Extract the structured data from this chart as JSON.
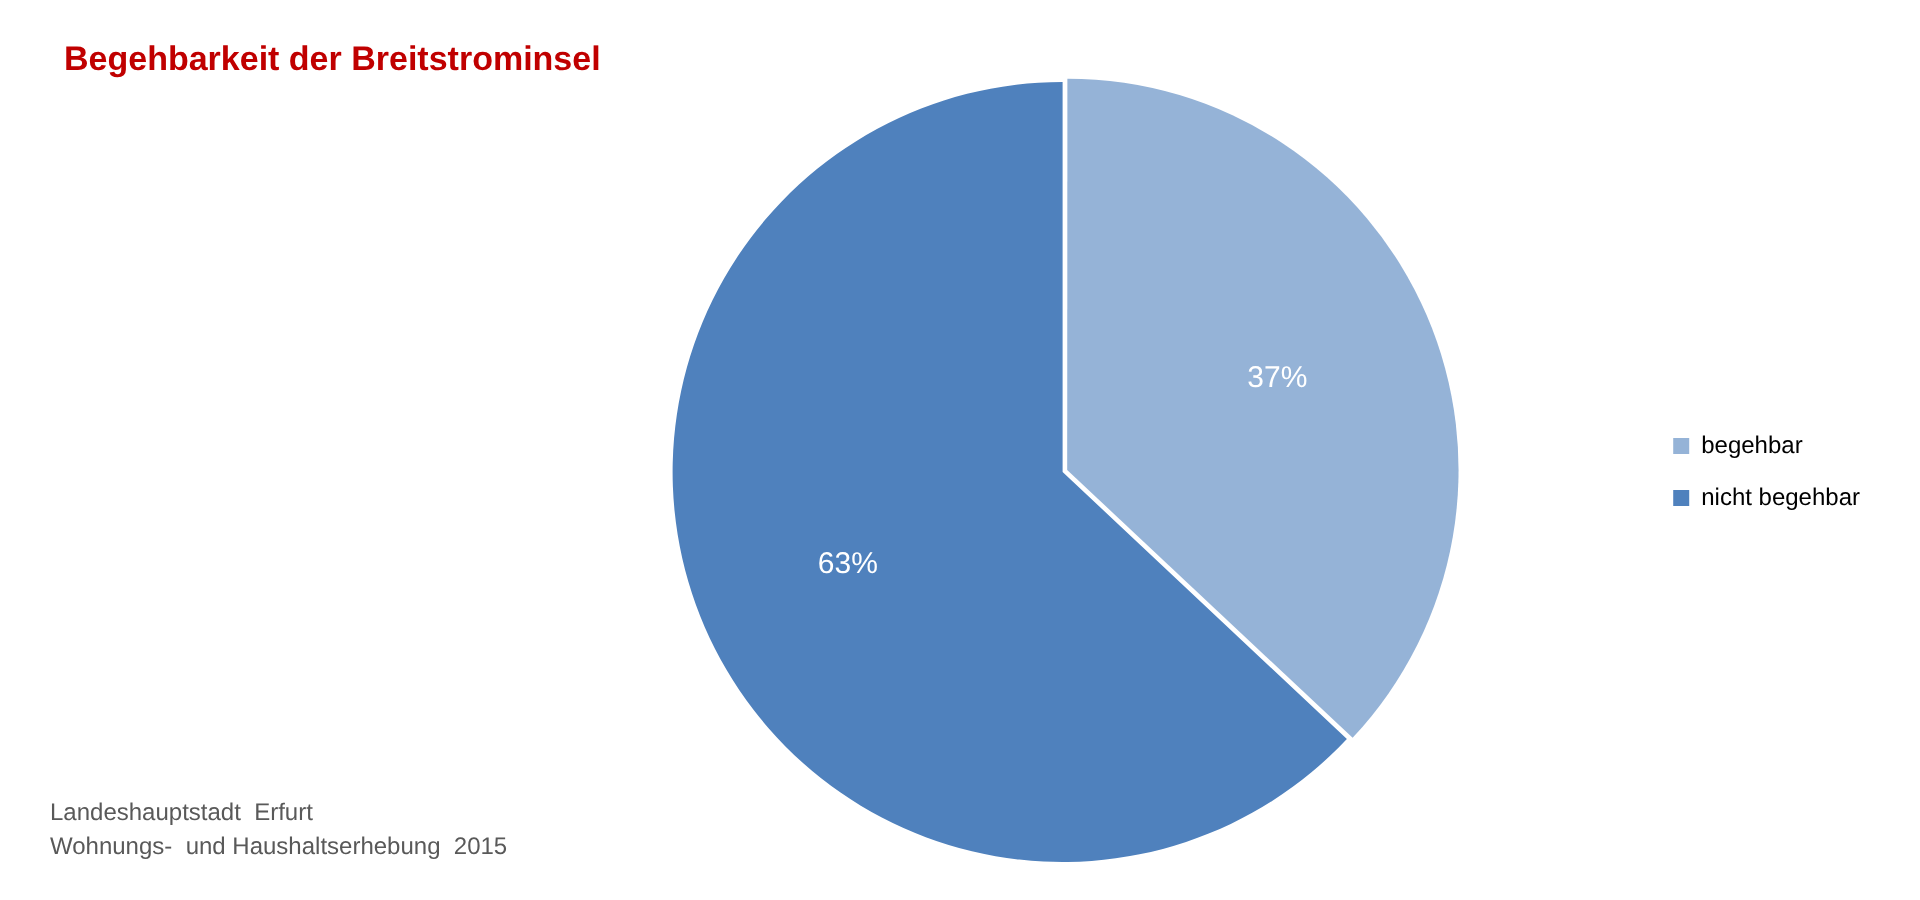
{
  "chart_data": {
    "type": "pie",
    "title": "Begehbarkeit der Breitstrominsel",
    "categories": [
      "begehbar",
      "nicht begehbar"
    ],
    "values": [
      37,
      63
    ],
    "value_labels": [
      "37%",
      "63%"
    ],
    "colors": [
      "#95b3d7",
      "#4f81bd"
    ],
    "legend": "right",
    "annotations": [
      "Landeshauptstadt  Erfurt",
      "Wohnungs-  und Haushaltserhebung  2015"
    ]
  }
}
